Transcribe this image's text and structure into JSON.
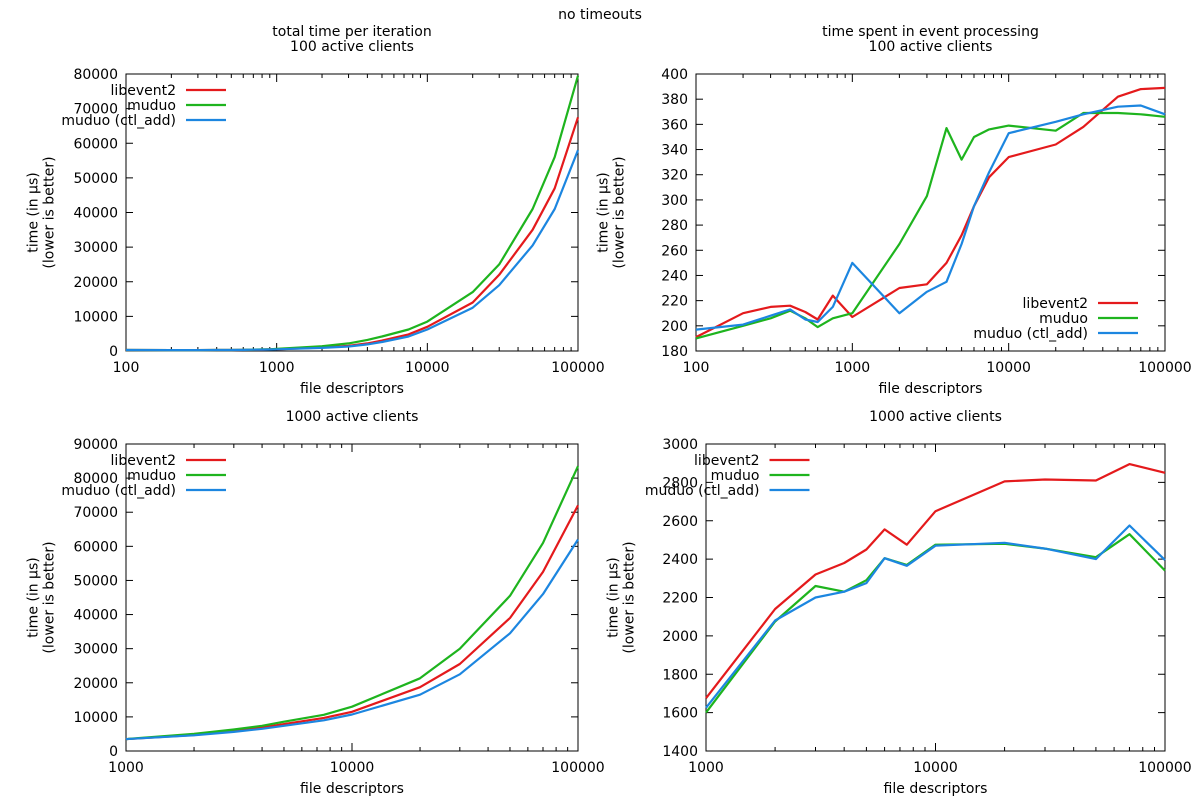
{
  "figure": {
    "title": "no timeouts"
  },
  "colors": {
    "libevent2": "#e41a1c",
    "muduo": "#1eb41e",
    "muduo (ctl_add)": "#1c86e0",
    "axis": "#000000"
  },
  "chart_data": [
    {
      "id": "tl",
      "type": "line",
      "title": [
        "total time per iteration",
        "100 active clients"
      ],
      "xlabel": "file descriptors",
      "ylabel": [
        "time (in µs)",
        "(lower is better)"
      ],
      "xscale": "log",
      "xlim": [
        100,
        100000
      ],
      "ylim": [
        0,
        80000
      ],
      "xticks": [
        100,
        1000,
        10000,
        100000
      ],
      "yticks": [
        0,
        10000,
        20000,
        30000,
        40000,
        50000,
        60000,
        70000,
        80000
      ],
      "legend": "top-left",
      "x": [
        100,
        200,
        300,
        400,
        500,
        600,
        700,
        800,
        900,
        1000,
        2000,
        3000,
        4000,
        5000,
        7500,
        10000,
        20000,
        30000,
        50000,
        70000,
        100000
      ],
      "series": [
        {
          "name": "libevent2",
          "values": [
            300,
            250,
            260,
            280,
            300,
            330,
            370,
            400,
            450,
            500,
            1000,
            1500,
            2200,
            3000,
            4800,
            7000,
            14000,
            22000,
            35000,
            47000,
            67500
          ]
        },
        {
          "name": "muduo",
          "values": [
            300,
            250,
            260,
            280,
            300,
            340,
            400,
            450,
            500,
            600,
            1400,
            2200,
            3200,
            4200,
            6200,
            8500,
            17000,
            25000,
            41000,
            56000,
            79500
          ]
        },
        {
          "name": "muduo (ctl_add)",
          "values": [
            300,
            250,
            260,
            280,
            300,
            330,
            370,
            400,
            430,
            480,
            900,
            1300,
            1900,
            2600,
            4200,
            6200,
            12500,
            19000,
            30500,
            41000,
            58000
          ]
        }
      ]
    },
    {
      "id": "tr",
      "type": "line",
      "title": [
        "time spent in event processing",
        "100 active clients"
      ],
      "xlabel": "file descriptors",
      "ylabel": [
        "time (in µs)",
        "(lower is better)"
      ],
      "xscale": "log",
      "xlim": [
        100,
        100000
      ],
      "ylim": [
        180,
        400
      ],
      "xticks": [
        100,
        1000,
        10000,
        100000
      ],
      "yticks": [
        180,
        200,
        220,
        240,
        260,
        280,
        300,
        320,
        340,
        360,
        380,
        400
      ],
      "legend": "bottom-right",
      "x": [
        100,
        200,
        300,
        400,
        500,
        600,
        750,
        1000,
        2000,
        3000,
        4000,
        5000,
        6000,
        7500,
        10000,
        20000,
        30000,
        50000,
        70000,
        100000
      ],
      "series": [
        {
          "name": "libevent2",
          "values": [
            191,
            210,
            215,
            216,
            211,
            205,
            224,
            207,
            230,
            233,
            250,
            272,
            295,
            318,
            334,
            344,
            358,
            382,
            388,
            389
          ]
        },
        {
          "name": "muduo",
          "values": [
            190,
            200,
            206,
            212,
            206,
            199,
            206,
            210,
            265,
            303,
            357,
            332,
            350,
            356,
            359,
            355,
            369,
            369,
            368,
            366
          ]
        },
        {
          "name": "muduo (ctl_add)",
          "values": [
            197,
            201,
            208,
            213,
            205,
            203,
            215,
            250,
            210,
            227,
            235,
            265,
            295,
            322,
            353,
            362,
            368,
            374,
            375,
            368
          ]
        }
      ]
    },
    {
      "id": "bl",
      "type": "line",
      "title": [
        "1000 active clients"
      ],
      "xlabel": "file descriptors",
      "ylabel": [
        "time (in µs)",
        "(lower is better)"
      ],
      "xscale": "log",
      "xlim": [
        1000,
        100000
      ],
      "ylim": [
        0,
        90000
      ],
      "xticks": [
        1000,
        10000,
        100000
      ],
      "yticks": [
        0,
        10000,
        20000,
        30000,
        40000,
        50000,
        60000,
        70000,
        80000,
        90000
      ],
      "legend": "top-left",
      "x": [
        1000,
        2000,
        3000,
        4000,
        5000,
        7500,
        10000,
        20000,
        30000,
        50000,
        70000,
        100000
      ],
      "series": [
        {
          "name": "libevent2",
          "values": [
            3500,
            4700,
            5900,
            6900,
            7900,
            9700,
            11500,
            18700,
            25500,
            39000,
            52500,
            72000
          ]
        },
        {
          "name": "muduo",
          "values": [
            3500,
            5000,
            6300,
            7400,
            8600,
            10600,
            13000,
            21300,
            30000,
            45500,
            61000,
            83500
          ]
        },
        {
          "name": "muduo (ctl_add)",
          "values": [
            3500,
            4600,
            5600,
            6500,
            7400,
            9000,
            10700,
            16500,
            22500,
            34500,
            46000,
            62000
          ]
        }
      ]
    },
    {
      "id": "br",
      "type": "line",
      "title": [
        "1000 active clients"
      ],
      "xlabel": "file descriptors",
      "ylabel": [
        "time (in µs)",
        "(lower is better)"
      ],
      "xscale": "log",
      "xlim": [
        1000,
        100000
      ],
      "ylim": [
        1400,
        3000
      ],
      "xticks": [
        1000,
        10000,
        100000
      ],
      "yticks": [
        1400,
        1600,
        1800,
        2000,
        2200,
        2400,
        2600,
        2800,
        3000
      ],
      "legend": "top-left",
      "x": [
        1000,
        2000,
        3000,
        4000,
        5000,
        6000,
        7500,
        10000,
        20000,
        30000,
        50000,
        70000,
        100000
      ],
      "series": [
        {
          "name": "libevent2",
          "values": [
            1675,
            2140,
            2320,
            2380,
            2450,
            2555,
            2475,
            2650,
            2805,
            2815,
            2810,
            2895,
            2850
          ]
        },
        {
          "name": "muduo",
          "values": [
            1600,
            2075,
            2260,
            2230,
            2290,
            2405,
            2370,
            2475,
            2480,
            2455,
            2410,
            2530,
            2340
          ]
        },
        {
          "name": "muduo (ctl_add)",
          "values": [
            1625,
            2080,
            2200,
            2230,
            2275,
            2405,
            2365,
            2470,
            2485,
            2455,
            2400,
            2575,
            2395
          ]
        }
      ]
    }
  ]
}
